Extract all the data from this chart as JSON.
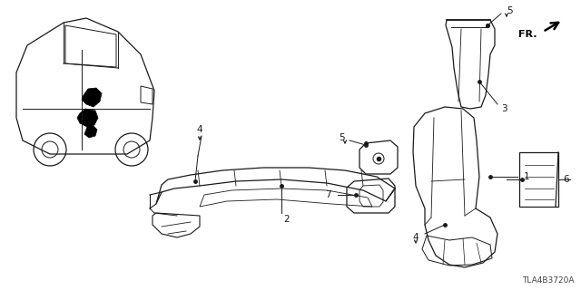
{
  "diagram_code": "TLA4B3720A",
  "background_color": "#ffffff",
  "line_color": "#1a1a1a",
  "text_color": "#1a1a1a",
  "figsize": [
    6.4,
    3.2
  ],
  "dpi": 100
}
